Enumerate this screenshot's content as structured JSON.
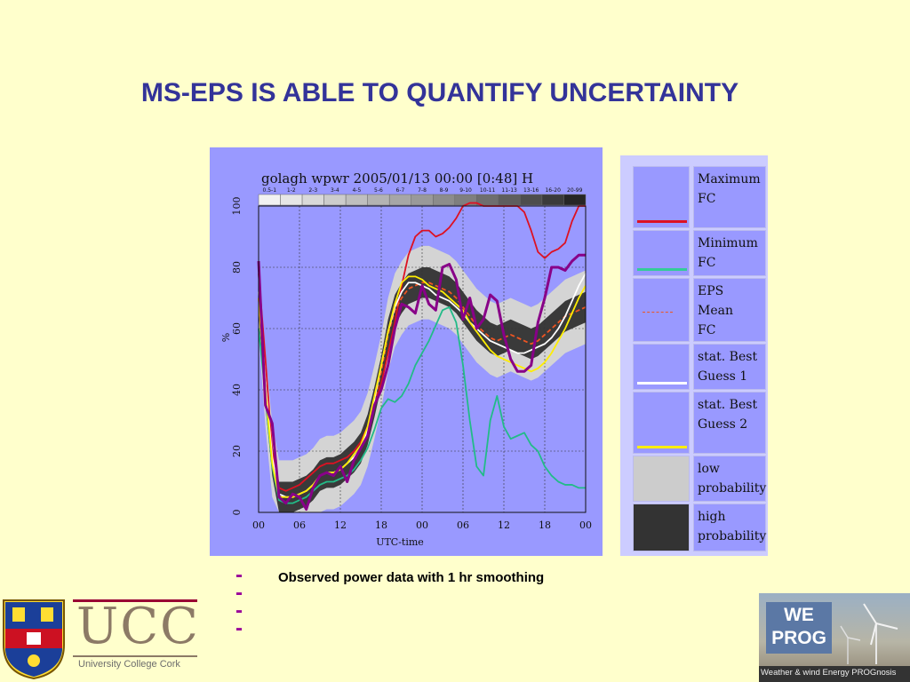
{
  "slide": {
    "title": "MS-EPS IS ABLE TO QUANTIFY UNCERTAINTY",
    "note_dash": "----",
    "note_text": "Observed power data with 1 hr smoothing"
  },
  "chart_data": {
    "type": "line",
    "title": "golagh wpwr 2005/01/13 00:00 [0:48] H",
    "xlabel": "UTC-time",
    "ylabel": "%",
    "ylim": [
      0,
      100
    ],
    "xlim": [
      0,
      48
    ],
    "grid": true,
    "x_ticks": [
      0,
      6,
      12,
      18,
      24,
      30,
      36,
      42,
      48
    ],
    "x_tick_labels": [
      "00",
      "06",
      "12",
      "18",
      "00",
      "06",
      "12",
      "18",
      "00"
    ],
    "y_ticks": [
      0,
      20,
      40,
      60,
      80,
      100
    ],
    "y_tick_labels": [
      "0",
      "20",
      "40",
      "60",
      "80",
      "100"
    ],
    "probability_bins": [
      "0.5-1",
      "1-2",
      "2-3",
      "3-4",
      "4-5",
      "5-6",
      "6-7",
      "7-8",
      "8-9",
      "9-10",
      "10-11",
      "11-13",
      "13-16",
      "16-20",
      "20-99"
    ],
    "probability_bin_colors": [
      "#f2f2f2",
      "#e6e6e6",
      "#d9d9d9",
      "#cccccc",
      "#bfbfbf",
      "#b3b3b3",
      "#a6a6a6",
      "#999999",
      "#8c8c8c",
      "#7f7f7f",
      "#6e6e6e",
      "#5e5e5e",
      "#4d4d4d",
      "#3b3b3b",
      "#262626"
    ],
    "x": [
      0,
      1,
      2,
      3,
      4,
      5,
      6,
      7,
      8,
      9,
      10,
      11,
      12,
      13,
      14,
      15,
      16,
      17,
      18,
      19,
      20,
      21,
      22,
      23,
      24,
      25,
      26,
      27,
      28,
      29,
      30,
      31,
      32,
      33,
      34,
      35,
      36,
      37,
      38,
      39,
      40,
      41,
      42,
      43,
      44,
      45,
      46,
      47,
      48
    ],
    "series": [
      {
        "key": "maximum_fc",
        "color": "#dd1122",
        "values": [
          78,
          50,
          20,
          8,
          7,
          8,
          9,
          11,
          13,
          15,
          16,
          16,
          17,
          18,
          20,
          23,
          28,
          35,
          42,
          52,
          62,
          74,
          84,
          90,
          92,
          92,
          90,
          91,
          93,
          96,
          100,
          101,
          101,
          100,
          100,
          100,
          100,
          100,
          100,
          98,
          92,
          85,
          83,
          85,
          86,
          88,
          95,
          100,
          100
        ]
      },
      {
        "key": "minimum_fc",
        "color": "#22bb88",
        "values": [
          60,
          38,
          15,
          4,
          3,
          3,
          4,
          5,
          7,
          9,
          10,
          10,
          11,
          12,
          14,
          17,
          21,
          27,
          34,
          37,
          36,
          38,
          42,
          48,
          52,
          56,
          61,
          66,
          67,
          62,
          48,
          30,
          15,
          12,
          30,
          38,
          28,
          24,
          25,
          26,
          22,
          20,
          15,
          12,
          10,
          9,
          9,
          8,
          8
        ]
      },
      {
        "key": "eps_mean_fc",
        "color": "#ee5522",
        "dash": "5,3",
        "values": [
          70,
          40,
          17,
          5,
          5,
          5,
          6,
          7,
          9,
          12,
          13,
          13,
          14,
          16,
          18,
          21,
          27,
          36,
          46,
          58,
          66,
          70,
          73,
          74,
          75,
          75,
          74,
          73,
          72,
          70,
          67,
          64,
          61,
          59,
          57,
          56,
          57,
          58,
          57,
          56,
          55,
          56,
          58,
          60,
          62,
          64,
          65,
          66,
          67
        ]
      },
      {
        "key": "stat_best_guess_1",
        "color": "#ffffff",
        "values": [
          72,
          42,
          18,
          6,
          5,
          5,
          6,
          7,
          9,
          12,
          13,
          13,
          14,
          16,
          18,
          21,
          27,
          37,
          48,
          59,
          67,
          72,
          75,
          75,
          74,
          73,
          71,
          70,
          69,
          67,
          65,
          62,
          60,
          58,
          56,
          55,
          54,
          53,
          52,
          52,
          53,
          54,
          55,
          57,
          60,
          64,
          69,
          74,
          78
        ]
      },
      {
        "key": "stat_best_guess_2",
        "color": "#ffee00",
        "values": [
          70,
          40,
          16,
          5,
          5,
          5,
          6,
          7,
          9,
          12,
          13,
          13,
          14,
          16,
          19,
          22,
          28,
          38,
          48,
          59,
          68,
          75,
          77,
          77,
          76,
          74,
          73,
          72,
          70,
          68,
          66,
          62,
          59,
          56,
          53,
          51,
          50,
          49,
          48,
          47,
          46,
          47,
          49,
          52,
          56,
          60,
          65,
          70,
          74
        ]
      },
      {
        "key": "observed_power",
        "color": "#880088",
        "values": [
          82,
          35,
          29,
          5,
          3,
          6,
          5,
          1,
          8,
          12,
          13,
          12,
          15,
          10,
          17,
          21,
          25,
          35,
          40,
          48,
          60,
          68,
          67,
          65,
          74,
          68,
          66,
          80,
          81,
          76,
          63,
          70,
          60,
          63,
          71,
          69,
          58,
          50,
          46,
          46,
          48,
          62,
          70,
          80,
          80,
          79,
          82,
          84,
          84
        ]
      }
    ],
    "band_inner_halfwidth": 5,
    "band_outer_halfwidth": 12,
    "legend": [
      {
        "label": "Maximum\nFC",
        "swatch": "line",
        "color": "#dd1122"
      },
      {
        "label": "Minimum\nFC",
        "swatch": "line",
        "color": "#33cc99"
      },
      {
        "label": "EPS\nMean\nFC",
        "swatch": "dashed",
        "color": "#ee5522"
      },
      {
        "label": "stat. Best\nGuess 1",
        "swatch": "line",
        "color": "#ffffff"
      },
      {
        "label": "stat. Best\nGuess 2",
        "swatch": "line",
        "color": "#ffee00"
      },
      {
        "label": "low\nprobability",
        "swatch": "fill",
        "color": "#cccccc"
      },
      {
        "label": "high\nprobability",
        "swatch": "fill",
        "color": "#333333"
      }
    ]
  },
  "logos": {
    "ucc_word": "UCC",
    "ucc_sub": "University College Cork",
    "weprog_text": "WE\nPROG",
    "weprog_tag": "Weather & wind Energy PROGnosis"
  }
}
